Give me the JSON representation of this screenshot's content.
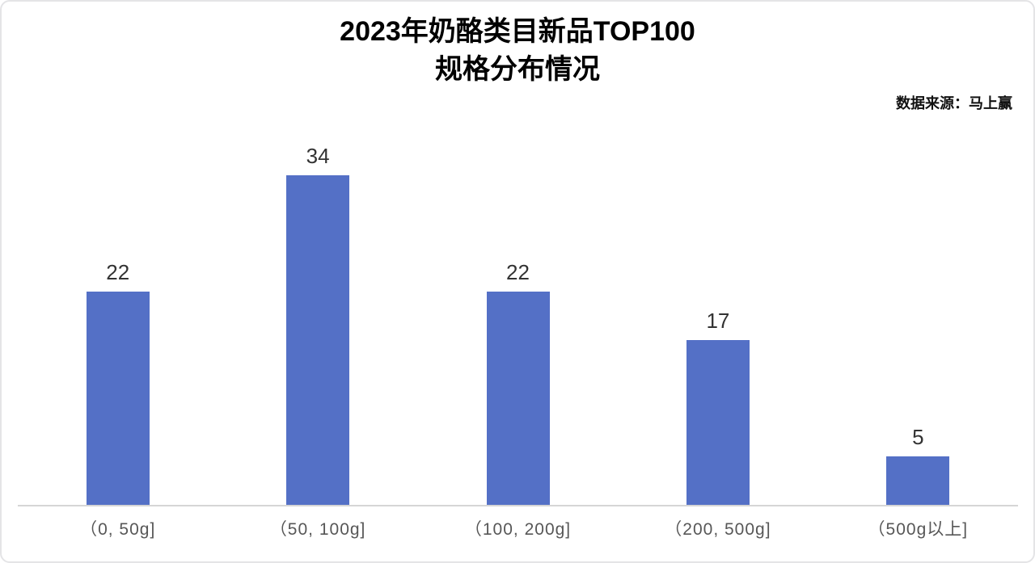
{
  "chart": {
    "title_line1": "2023年奶酪类目新品TOP100",
    "title_line2": "规格分布情况",
    "source": "数据来源：马上赢"
  },
  "chart_data": {
    "type": "bar",
    "title": "2023年奶酪类目新品TOP100 规格分布情况",
    "subtitle": "数据来源：马上赢",
    "categories": [
      "（0, 50g]",
      "（50, 100g]",
      "（100, 200g]",
      "（200, 500g]",
      "（500g以上]"
    ],
    "values": [
      22,
      34,
      22,
      17,
      5
    ],
    "xlabel": "",
    "ylabel": "",
    "ylim": [
      0,
      40
    ],
    "grid": false,
    "legend": false,
    "value_labels_shown": true,
    "bar_color": "#5470C6",
    "value_label_color": "#333333",
    "category_label_color": "#575757",
    "axis_line_color": "#D6D6D6"
  }
}
